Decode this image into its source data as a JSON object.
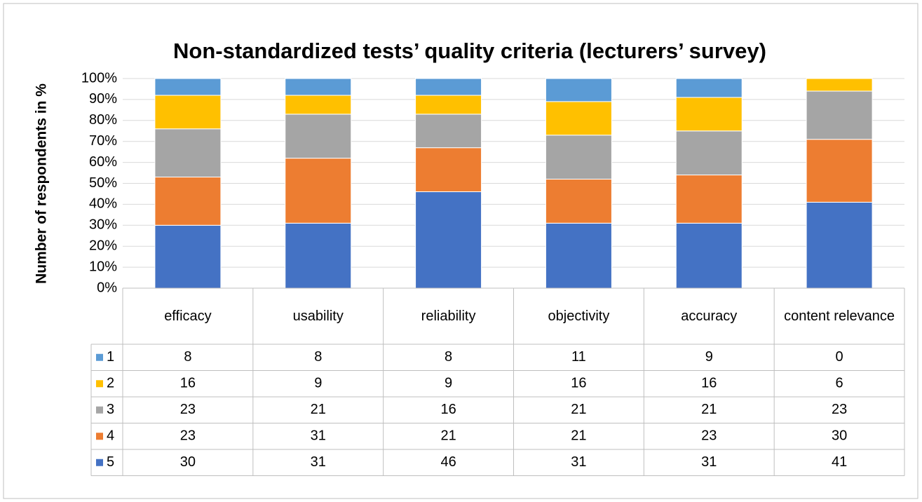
{
  "chart_data": {
    "type": "stacked_bar",
    "title": "Non-standardized tests’ quality criteria (lecturers’ survey)",
    "y_label": "Number of respondents in %",
    "categories": [
      "efficacy",
      "usability",
      "reliability",
      "objectivity",
      "accuracy",
      "content relevance"
    ],
    "series": [
      {
        "name": "1",
        "color": "#5b9bd5",
        "values": [
          8,
          8,
          8,
          11,
          9,
          0
        ]
      },
      {
        "name": "2",
        "color": "#ffc000",
        "values": [
          16,
          9,
          9,
          16,
          16,
          6
        ]
      },
      {
        "name": "3",
        "color": "#a5a5a5",
        "values": [
          23,
          21,
          16,
          21,
          21,
          23
        ]
      },
      {
        "name": "4",
        "color": "#ed7d31",
        "values": [
          23,
          31,
          21,
          21,
          23,
          30
        ]
      },
      {
        "name": "5",
        "color": "#4472c4",
        "values": [
          30,
          31,
          46,
          31,
          31,
          41
        ]
      }
    ],
    "ylim": [
      0,
      100
    ],
    "yticks": [
      {
        "value": 0,
        "label": "0%"
      },
      {
        "value": 10,
        "label": "10%"
      },
      {
        "value": 20,
        "label": "20%"
      },
      {
        "value": 30,
        "label": "30%"
      },
      {
        "value": 40,
        "label": "40%"
      },
      {
        "value": 50,
        "label": "50%"
      },
      {
        "value": 60,
        "label": "60%"
      },
      {
        "value": 70,
        "label": "70%"
      },
      {
        "value": 80,
        "label": "80%"
      },
      {
        "value": 90,
        "label": "90%"
      },
      {
        "value": 100,
        "label": "100%"
      }
    ],
    "grid": true
  }
}
